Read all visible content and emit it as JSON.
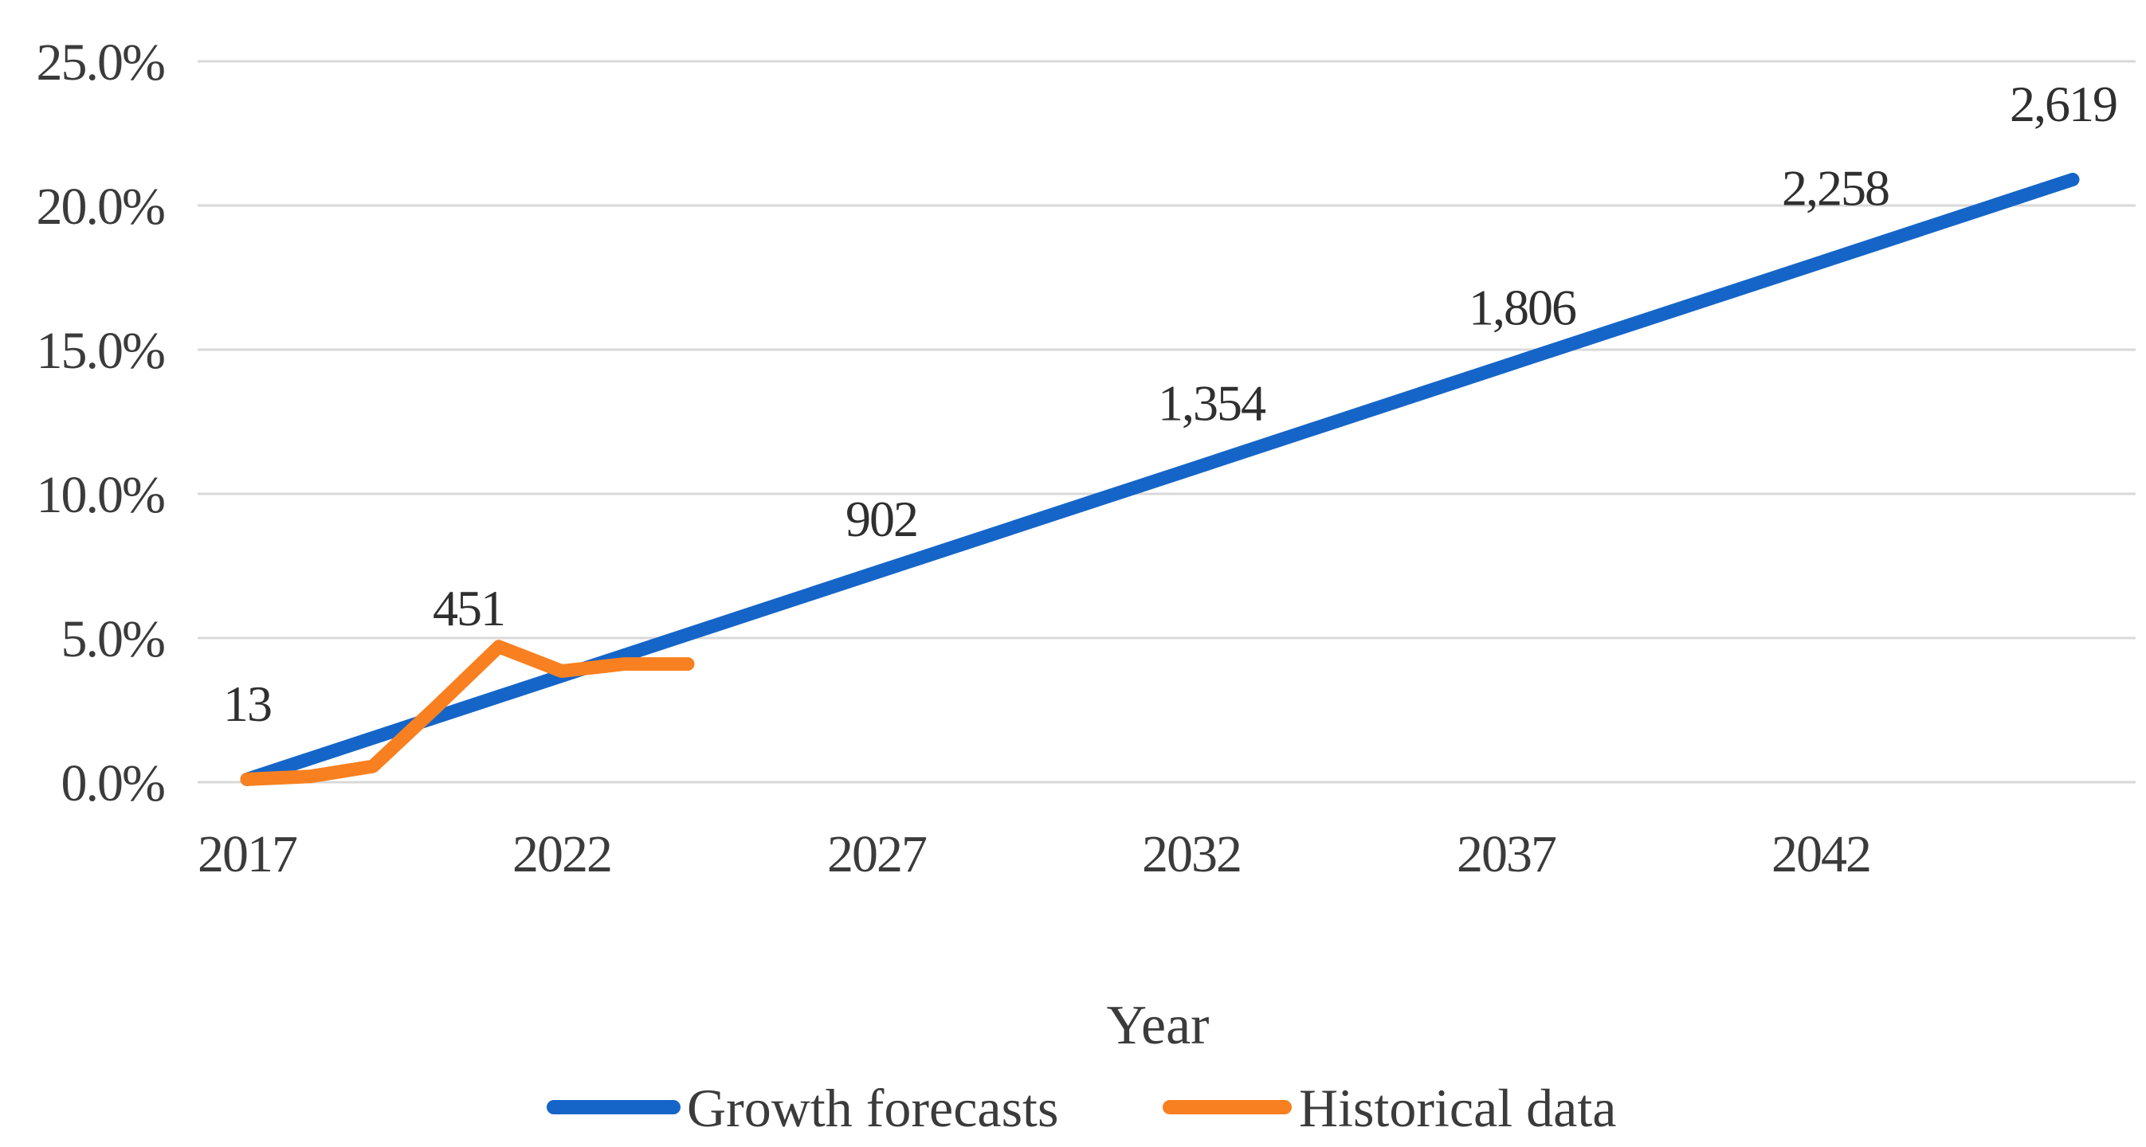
{
  "chart_data": {
    "type": "line",
    "title": "",
    "xlabel": "Year",
    "ylabel": "",
    "x_axis": {
      "ticks": [
        2017,
        2022,
        2027,
        2032,
        2037,
        2042
      ],
      "range_years": [
        2017,
        2046
      ]
    },
    "y_axis": {
      "tick_values": [
        25,
        20,
        15,
        10,
        5,
        0
      ],
      "tick_labels": [
        "25.0%",
        "20.0%",
        "15.0%",
        "10.0%",
        "5.0%",
        "0.0%"
      ],
      "range": [
        0,
        25
      ],
      "grid": true
    },
    "series": [
      {
        "name": "Growth forecasts",
        "color": "#1565c8",
        "points": [
          {
            "year": 2017,
            "pct": 0.1,
            "label": "13"
          },
          {
            "year": 2022,
            "pct": 3.69,
            "label": "451"
          },
          {
            "year": 2027,
            "pct": 7.28,
            "label": "902"
          },
          {
            "year": 2032,
            "pct": 10.86,
            "label": "1,354"
          },
          {
            "year": 2037,
            "pct": 14.45,
            "label": "1,806"
          },
          {
            "year": 2042,
            "pct": 18.03,
            "label": "2,258"
          },
          {
            "year": 2046,
            "pct": 20.9,
            "label": "2,619"
          }
        ]
      },
      {
        "name": "Historical data",
        "color": "#f88020",
        "points": [
          {
            "year": 2017,
            "pct": 0.1
          },
          {
            "year": 2018,
            "pct": 0.2
          },
          {
            "year": 2019,
            "pct": 0.55
          },
          {
            "year": 2020,
            "pct": 2.6
          },
          {
            "year": 2021,
            "pct": 4.7
          },
          {
            "year": 2022,
            "pct": 3.85
          },
          {
            "year": 2023,
            "pct": 4.1
          },
          {
            "year": 2024,
            "pct": 4.1
          }
        ]
      }
    ],
    "legend": {
      "position": "bottom",
      "entries": [
        "Growth forecasts",
        "Historical data"
      ]
    }
  },
  "colors": {
    "background": "#ffffff",
    "grid": "#d9d9d9",
    "text": "#3b3b3b",
    "forecast_blue": "#1565c8",
    "historical_orange": "#f88020"
  }
}
